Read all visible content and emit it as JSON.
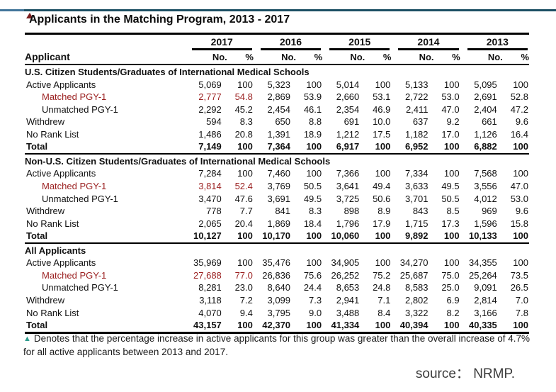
{
  "title": "Applicants in the Matching Program, 2013 - 2017",
  "colors": {
    "accent_line": "#1c4f63",
    "highlight_red": "#9a1e1e",
    "footnote_marker_teal": "#2f9c8d"
  },
  "table": {
    "corner_label": "Applicant",
    "years": [
      "2017",
      "2016",
      "2015",
      "2014",
      "2013"
    ],
    "subcols": [
      "No.",
      "%"
    ],
    "sections": [
      {
        "name": "U.S. Citizen Students/Graduates of International Medical Schools",
        "rows": [
          {
            "label": "Active Applicants",
            "indent": false,
            "red": false,
            "bold": false,
            "values": [
              "5,069",
              "100",
              "5,323",
              "100",
              "5,014",
              "100",
              "5,133",
              "100",
              "5,095",
              "100"
            ]
          },
          {
            "label": "Matched PGY-1",
            "indent": true,
            "red": true,
            "bold": false,
            "values": [
              "2,777",
              "54.8",
              "2,869",
              "53.9",
              "2,660",
              "53.1",
              "2,722",
              "53.0",
              "2,691",
              "52.8"
            ]
          },
          {
            "label": "Unmatched PGY-1",
            "indent": true,
            "red": false,
            "bold": false,
            "values": [
              "2,292",
              "45.2",
              "2,454",
              "46.1",
              "2,354",
              "46.9",
              "2,411",
              "47.0",
              "2,404",
              "47.2"
            ]
          },
          {
            "label": "Withdrew",
            "indent": false,
            "red": false,
            "bold": false,
            "values": [
              "594",
              "8.3",
              "650",
              "8.8",
              "691",
              "10.0",
              "637",
              "9.2",
              "661",
              "9.6"
            ]
          },
          {
            "label": "No Rank List",
            "indent": false,
            "red": false,
            "bold": false,
            "values": [
              "1,486",
              "20.8",
              "1,391",
              "18.9",
              "1,212",
              "17.5",
              "1,182",
              "17.0",
              "1,126",
              "16.4"
            ]
          },
          {
            "label": "Total",
            "indent": false,
            "red": false,
            "bold": true,
            "values": [
              "7,149",
              "100",
              "7,364",
              "100",
              "6,917",
              "100",
              "6,952",
              "100",
              "6,882",
              "100"
            ]
          }
        ]
      },
      {
        "name": "Non-U.S. Citizen Students/Graduates of International Medical Schools",
        "rows": [
          {
            "label": "Active Applicants",
            "indent": false,
            "red": false,
            "bold": false,
            "values": [
              "7,284",
              "100",
              "7,460",
              "100",
              "7,366",
              "100",
              "7,334",
              "100",
              "7,568",
              "100"
            ]
          },
          {
            "label": "Matched PGY-1",
            "indent": true,
            "red": true,
            "bold": false,
            "values": [
              "3,814",
              "52.4",
              "3,769",
              "50.5",
              "3,641",
              "49.4",
              "3,633",
              "49.5",
              "3,556",
              "47.0"
            ]
          },
          {
            "label": "Unmatched PGY-1",
            "indent": true,
            "red": false,
            "bold": false,
            "values": [
              "3,470",
              "47.6",
              "3,691",
              "49.5",
              "3,725",
              "50.6",
              "3,701",
              "50.5",
              "4,012",
              "53.0"
            ]
          },
          {
            "label": "Withdrew",
            "indent": false,
            "red": false,
            "bold": false,
            "values": [
              "778",
              "7.7",
              "841",
              "8.3",
              "898",
              "8.9",
              "843",
              "8.5",
              "969",
              "9.6"
            ]
          },
          {
            "label": "No Rank List",
            "indent": false,
            "red": false,
            "bold": false,
            "values": [
              "2,065",
              "20.4",
              "1,869",
              "18.4",
              "1,796",
              "17.9",
              "1,715",
              "17.3",
              "1,596",
              "15.8"
            ]
          },
          {
            "label": "Total",
            "indent": false,
            "red": false,
            "bold": true,
            "values": [
              "10,127",
              "100",
              "10,170",
              "100",
              "10,060",
              "100",
              "9,892",
              "100",
              "10,133",
              "100"
            ]
          }
        ]
      },
      {
        "name": "All Applicants",
        "rows": [
          {
            "label": "Active Applicants",
            "indent": false,
            "red": false,
            "bold": false,
            "values": [
              "35,969",
              "100",
              "35,476",
              "100",
              "34,905",
              "100",
              "34,270",
              "100",
              "34,355",
              "100"
            ]
          },
          {
            "label": "Matched PGY-1",
            "indent": true,
            "red": true,
            "bold": false,
            "values": [
              "27,688",
              "77.0",
              "26,836",
              "75.6",
              "26,252",
              "75.2",
              "25,687",
              "75.0",
              "25,264",
              "73.5"
            ]
          },
          {
            "label": "Unmatched PGY-1",
            "indent": true,
            "red": false,
            "bold": false,
            "values": [
              "8,281",
              "23.0",
              "8,640",
              "24.4",
              "8,653",
              "24.8",
              "8,583",
              "25.0",
              "9,091",
              "26.5"
            ]
          },
          {
            "label": "Withdrew",
            "indent": false,
            "red": false,
            "bold": false,
            "values": [
              "3,118",
              "7.2",
              "3,099",
              "7.3",
              "2,941",
              "7.1",
              "2,802",
              "6.9",
              "2,814",
              "7.0"
            ]
          },
          {
            "label": "No Rank List",
            "indent": false,
            "red": false,
            "bold": false,
            "values": [
              "4,070",
              "9.4",
              "3,795",
              "9.0",
              "3,488",
              "8.4",
              "3,322",
              "8.2",
              "3,166",
              "7.8"
            ]
          },
          {
            "label": "Total",
            "indent": false,
            "red": false,
            "bold": true,
            "values": [
              "43,157",
              "100",
              "42,370",
              "100",
              "41,334",
              "100",
              "40,394",
              "100",
              "40,335",
              "100"
            ]
          }
        ]
      }
    ]
  },
  "footnote": {
    "marker": "▲",
    "text": "Denotes that the percentage increase in active applicants for this group was greater than the overall increase of 4.7% for all active applicants between 2013 and 2017."
  },
  "source": "source： NRMP."
}
